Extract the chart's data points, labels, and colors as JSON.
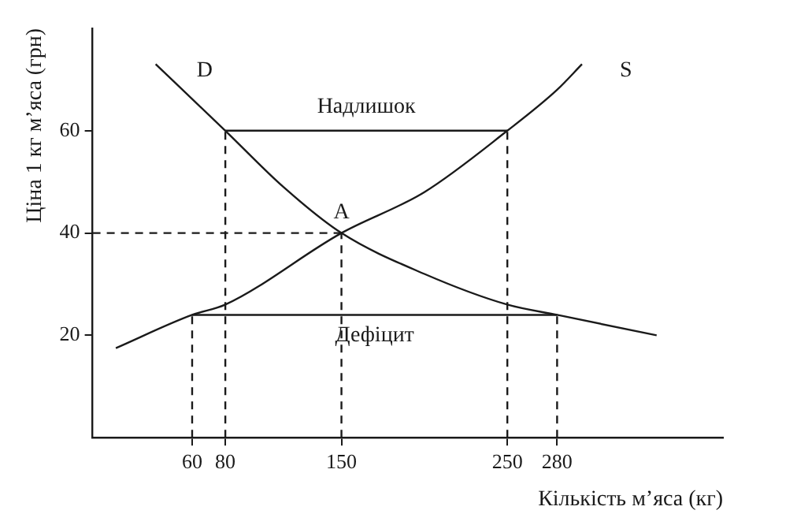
{
  "chart_data": {
    "type": "line",
    "xlabel": "Кількість м’яса (кг)",
    "ylabel": "Ціна 1 кг м’яса (грн)",
    "xlim": [
      0,
      380
    ],
    "ylim": [
      0,
      80
    ],
    "xticks": [
      60,
      80,
      150,
      250,
      280
    ],
    "yticks": [
      20,
      40,
      60
    ],
    "grid": false,
    "legend": false,
    "marker": "none",
    "annotations": [
      {
        "text": "A",
        "x": 150,
        "y": 40
      }
    ],
    "series": [
      {
        "name": "D",
        "color": "#1a1a1a",
        "x": [
          38,
          80,
          115,
          150,
          200,
          250,
          280,
          340
        ],
        "values": [
          73,
          60,
          49,
          40,
          32,
          26,
          24,
          20
        ]
      },
      {
        "name": "S",
        "color": "#1a1a1a",
        "x": [
          14,
          60,
          80,
          150,
          200,
          250,
          280,
          295
        ],
        "values": [
          17.5,
          24,
          26,
          40,
          48,
          60,
          68,
          73
        ]
      },
      {
        "name": "Надлишок",
        "color": "#1a1a1a",
        "x": [
          80,
          250
        ],
        "values": [
          60,
          60
        ]
      },
      {
        "name": "Дефіцит",
        "color": "#1a1a1a",
        "x": [
          60,
          280
        ],
        "values": [
          24,
          24
        ]
      },
      {
        "color": "#1a1a1a",
        "line_style": "dashed",
        "x": [
          0,
          150
        ],
        "values": [
          40,
          40
        ]
      },
      {
        "color": "#1a1a1a",
        "line_style": "dashed",
        "x": [
          60,
          60
        ],
        "values": [
          0,
          24
        ]
      },
      {
        "color": "#1a1a1a",
        "line_style": "dashed",
        "x": [
          80,
          80
        ],
        "values": [
          0,
          60
        ]
      },
      {
        "color": "#1a1a1a",
        "line_style": "dashed",
        "x": [
          150,
          150
        ],
        "values": [
          0,
          40
        ]
      },
      {
        "color": "#1a1a1a",
        "line_style": "dashed",
        "x": [
          250,
          250
        ],
        "values": [
          0,
          60
        ]
      },
      {
        "color": "#1a1a1a",
        "line_style": "dashed",
        "x": [
          280,
          280
        ],
        "values": [
          0,
          24
        ]
      }
    ]
  }
}
